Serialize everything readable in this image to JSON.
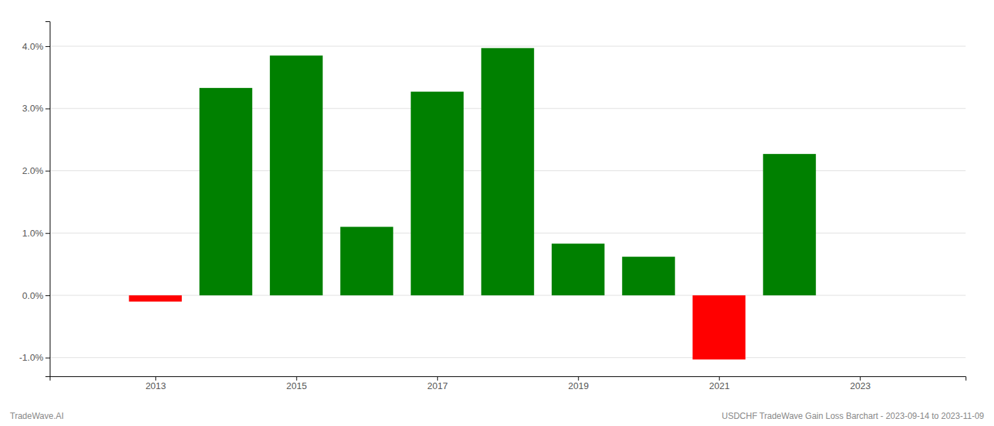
{
  "chart_data": {
    "type": "bar",
    "title": "USDCHF TradeWave Gain Loss Barchart - 2023-09-14 to 2023-11-09",
    "annotations": [
      "TradeWave.AI"
    ],
    "x": [
      2013,
      2014,
      2015,
      2016,
      2017,
      2018,
      2019,
      2020,
      2021,
      2022
    ],
    "values": [
      -0.001,
      0.0333,
      0.0385,
      0.011,
      0.0327,
      0.0397,
      0.0083,
      0.0062,
      -0.0103,
      0.0227
    ],
    "colors": [
      "#ff0000",
      "#008000",
      "#008000",
      "#008000",
      "#008000",
      "#008000",
      "#008000",
      "#008000",
      "#ff0000",
      "#008000"
    ],
    "xlim": [
      2011.5,
      2024.5
    ],
    "xticks": [
      2013,
      2015,
      2017,
      2019,
      2021,
      2023
    ],
    "ylim": [
      -0.013,
      0.044
    ],
    "yticks": [
      {
        "value": -0.01,
        "label": "-1.0%"
      },
      {
        "value": 0.0,
        "label": "0.0%"
      },
      {
        "value": 0.01,
        "label": "1.0%"
      },
      {
        "value": 0.02,
        "label": "2.0%"
      },
      {
        "value": 0.03,
        "label": "3.0%"
      },
      {
        "value": 0.04,
        "label": "4.0%"
      }
    ],
    "grid": true
  }
}
